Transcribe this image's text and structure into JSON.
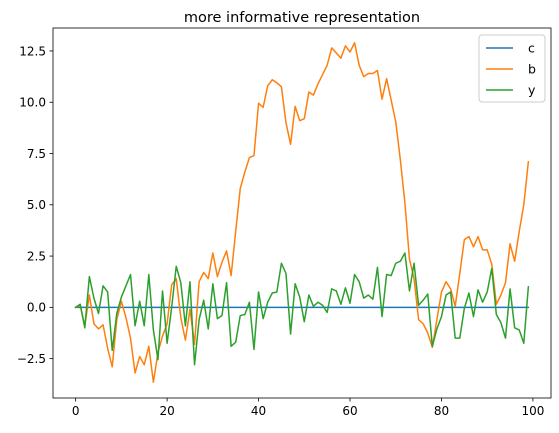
{
  "chart_data": {
    "type": "line",
    "title": "more informative representation",
    "xlabel": "",
    "ylabel": "",
    "xlim": [
      -4.95,
      103.95
    ],
    "ylim": [
      -4.42,
      13.62
    ],
    "xticks": [
      0,
      20,
      40,
      60,
      80,
      100
    ],
    "yticks": [
      -2.5,
      0.0,
      2.5,
      5.0,
      7.5,
      10.0,
      12.5
    ],
    "xtick_labels": [
      "0",
      "20",
      "40",
      "60",
      "80",
      "100"
    ],
    "ytick_labels": [
      "−2.5",
      "0.0",
      "2.5",
      "5.0",
      "7.5",
      "10.0",
      "12.5"
    ],
    "grid": false,
    "legend_position": "top-right",
    "x": [
      0,
      1,
      2,
      3,
      4,
      5,
      6,
      7,
      8,
      9,
      10,
      11,
      12,
      13,
      14,
      15,
      16,
      17,
      18,
      19,
      20,
      21,
      22,
      23,
      24,
      25,
      26,
      27,
      28,
      29,
      30,
      31,
      32,
      33,
      34,
      35,
      36,
      37,
      38,
      39,
      40,
      41,
      42,
      43,
      44,
      45,
      46,
      47,
      48,
      49,
      50,
      51,
      52,
      53,
      54,
      55,
      56,
      57,
      58,
      59,
      60,
      61,
      62,
      63,
      64,
      65,
      66,
      67,
      68,
      69,
      70,
      71,
      72,
      73,
      74,
      75,
      76,
      77,
      78,
      79,
      80,
      81,
      82,
      83,
      84,
      85,
      86,
      87,
      88,
      89,
      90,
      91,
      92,
      93,
      94,
      95,
      96,
      97,
      98,
      99
    ],
    "series": [
      {
        "name": "c",
        "color": "#1f77b4",
        "values": [
          0,
          0,
          0,
          0,
          0,
          0,
          0,
          0,
          0,
          0,
          0,
          0,
          0,
          0,
          0,
          0,
          0,
          0,
          0,
          0,
          0,
          0,
          0,
          0,
          0,
          0,
          0,
          0,
          0,
          0,
          0,
          0,
          0,
          0,
          0,
          0,
          0,
          0,
          0,
          0,
          0,
          0,
          0,
          0,
          0,
          0,
          0,
          0,
          0,
          0,
          0,
          0,
          0,
          0,
          0,
          0,
          0,
          0,
          0,
          0,
          0,
          0,
          0,
          0,
          0,
          0,
          0,
          0,
          0,
          0,
          0,
          0,
          0,
          0,
          0,
          0,
          0,
          0,
          0,
          0,
          0,
          0,
          0,
          0,
          0,
          0,
          0,
          0,
          0,
          0,
          0,
          0,
          0,
          0,
          0,
          0,
          0,
          0,
          0,
          0
        ]
      },
      {
        "name": "b",
        "color": "#ff7f0e",
        "values": [
          0.0,
          0.1,
          -0.9,
          0.6,
          -0.8,
          -1.05,
          -0.85,
          -2.0,
          -2.9,
          -0.6,
          0.3,
          -0.5,
          -1.5,
          -3.2,
          -2.4,
          -2.8,
          -1.9,
          -3.65,
          -2.2,
          -1.4,
          -0.8,
          1.1,
          1.4,
          -0.5,
          -1.6,
          -0.1,
          -1.8,
          1.25,
          1.7,
          1.4,
          2.65,
          1.5,
          2.2,
          2.75,
          1.55,
          3.7,
          5.8,
          6.6,
          7.3,
          7.4,
          9.95,
          9.75,
          10.8,
          11.1,
          10.95,
          10.75,
          9.0,
          7.95,
          9.8,
          9.1,
          9.2,
          10.5,
          10.35,
          10.9,
          11.35,
          11.8,
          12.65,
          12.4,
          12.15,
          12.75,
          12.45,
          12.9,
          11.8,
          11.25,
          11.4,
          11.4,
          11.55,
          10.15,
          11.15,
          10.1,
          9.05,
          7.2,
          5.1,
          2.35,
          1.4,
          -0.6,
          -0.8,
          -1.25,
          -1.95,
          -0.6,
          0.75,
          1.25,
          0.9,
          0.05,
          1.65,
          3.3,
          3.45,
          2.95,
          3.45,
          2.8,
          2.8,
          2.1,
          0.15,
          0.6,
          1.2,
          3.1,
          2.25,
          3.7,
          5.0,
          7.1
        ]
      },
      {
        "name": "y",
        "color": "#2ca02c",
        "values": [
          0.0,
          0.15,
          -1.0,
          1.5,
          0.45,
          -0.3,
          1.05,
          0.75,
          -2.1,
          -0.3,
          0.5,
          1.05,
          1.6,
          -0.9,
          0.3,
          -0.9,
          1.6,
          -1.1,
          -2.55,
          0.8,
          -1.75,
          0.0,
          2.0,
          1.2,
          -0.9,
          1.25,
          -2.8,
          -0.6,
          0.35,
          -1.05,
          1.15,
          -0.55,
          -0.4,
          1.2,
          -1.9,
          -1.7,
          -0.4,
          -0.35,
          0.25,
          -2.05,
          0.75,
          -0.55,
          0.25,
          0.7,
          0.75,
          2.15,
          1.65,
          -1.3,
          1.15,
          0.5,
          -0.7,
          0.6,
          0.05,
          0.25,
          0.1,
          -0.25,
          0.9,
          0.8,
          0.15,
          0.95,
          0.2,
          1.6,
          1.25,
          0.45,
          0.6,
          0.4,
          1.95,
          -0.45,
          1.6,
          1.55,
          2.15,
          2.25,
          2.65,
          0.8,
          2.15,
          0.1,
          0.35,
          0.65,
          -1.9,
          -1.05,
          -0.45,
          0.6,
          0.75,
          -1.5,
          -1.5,
          -0.05,
          0.7,
          -0.45,
          0.85,
          0.25,
          0.75,
          1.9,
          -0.35,
          -0.75,
          -1.5,
          0.9,
          -1.0,
          -1.1,
          -1.75,
          1.0
        ]
      }
    ]
  }
}
